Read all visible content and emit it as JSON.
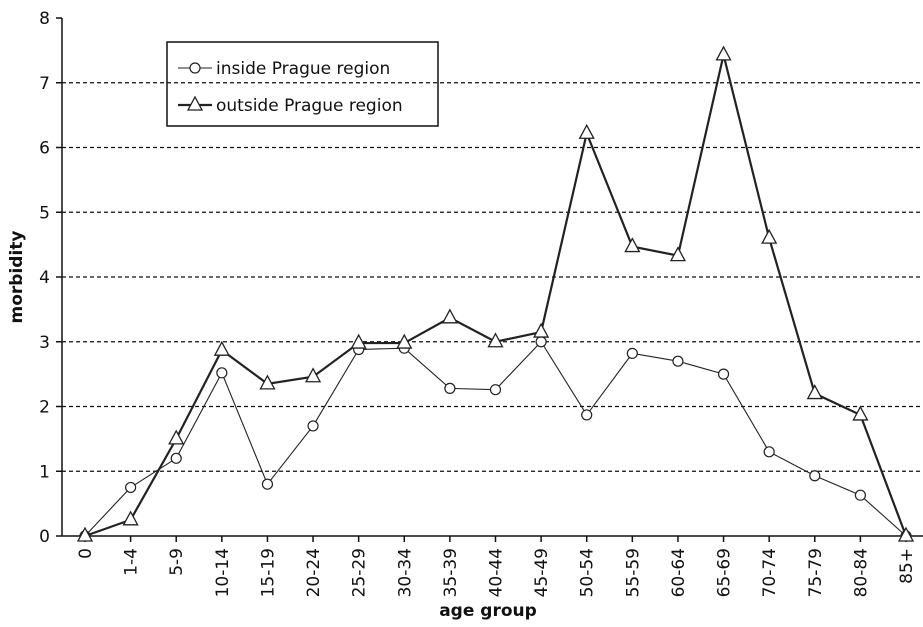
{
  "chart_data": {
    "type": "line",
    "x_label": "age group",
    "y_label": "morbidity",
    "categories": [
      "0",
      "1-4",
      "5-9",
      "10-14",
      "15-19",
      "20-24",
      "25-29",
      "30-34",
      "35-39",
      "40-44",
      "45-49",
      "50-54",
      "55-59",
      "60-64",
      "65-69",
      "70-74",
      "75-79",
      "80-84",
      "85+"
    ],
    "series": [
      {
        "name": "inside Prague region",
        "color": "#222222",
        "marker": "circle",
        "values": [
          0,
          0.75,
          1.2,
          2.52,
          0.8,
          1.7,
          2.88,
          2.9,
          2.28,
          2.26,
          3.0,
          1.87,
          2.82,
          2.7,
          2.5,
          1.3,
          0.93,
          0.63,
          0
        ]
      },
      {
        "name": "outside Prague region",
        "color": "#222222",
        "marker": "triangle",
        "values": [
          0,
          0.25,
          1.5,
          2.87,
          2.35,
          2.46,
          2.98,
          2.98,
          3.37,
          3.0,
          3.15,
          6.22,
          4.47,
          4.33,
          7.43,
          4.6,
          2.2,
          1.87,
          0
        ]
      }
    ],
    "ylim": [
      0,
      8
    ],
    "yticks": [
      0,
      1,
      2,
      3,
      4,
      5,
      6,
      7,
      8
    ],
    "grid": true
  }
}
